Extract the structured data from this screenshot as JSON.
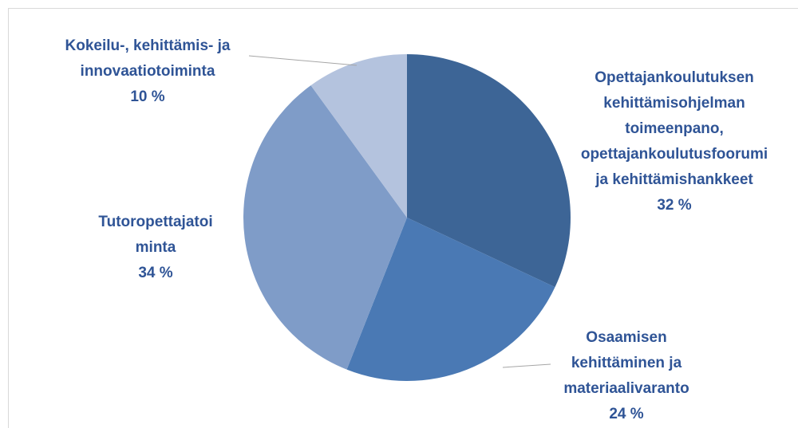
{
  "chart_data": {
    "type": "pie",
    "categories": [
      "Opettajankoulutuksen\nkehittämisohjelman\ntoimeenpano,\nopettajankoulutusfoorumi\nja kehittämishankkeet",
      "Osaamisen\nkehittäminen ja\nmateriaalivaranto",
      "Tutoropettajatoi\nminta",
      "Kokeilu-, kehittämis- ja\ninnovaatiotoiminta"
    ],
    "values": [
      32,
      24,
      34,
      10
    ],
    "value_labels": [
      "32 %",
      "24 %",
      "34 %",
      "10 %"
    ],
    "colors": [
      "#3d6596",
      "#4a79b4",
      "#7f9cc8",
      "#b4c3de"
    ]
  }
}
